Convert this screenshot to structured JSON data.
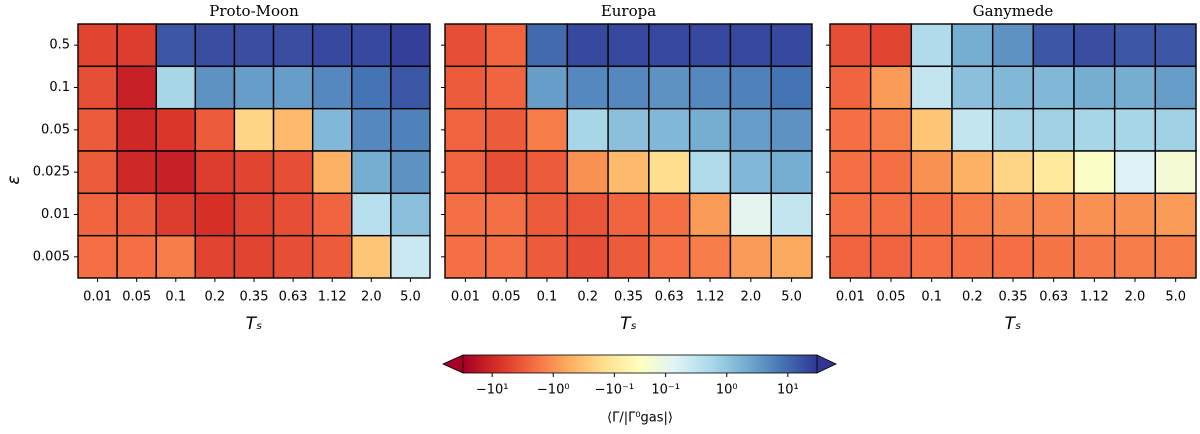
{
  "chart_data": [
    {
      "type": "heatmap",
      "title": "Proto-Moon",
      "xlabel": "Tₛ",
      "ylabel": "ε",
      "x_categories": [
        "0.01",
        "0.05",
        "0.1",
        "0.2",
        "0.35",
        "0.63",
        "1.12",
        "2.0",
        "5.0"
      ],
      "y_categories": [
        "0.5",
        "0.1",
        "0.05",
        "0.025",
        "0.01",
        "0.005"
      ],
      "values": [
        [
          -5,
          -6,
          15,
          18,
          18,
          18,
          20,
          20,
          25
        ],
        [
          -4,
          -12,
          0.6,
          4,
          3,
          3,
          5,
          8,
          15
        ],
        [
          -3,
          -10,
          -7,
          -3,
          -0.2,
          -0.4,
          1.5,
          5,
          6
        ],
        [
          -3,
          -10,
          -12,
          -6,
          -5,
          -4,
          -0.5,
          2,
          4
        ],
        [
          -2.5,
          -3,
          -6,
          -8,
          -5,
          -4,
          -2.5,
          0.4,
          1.2
        ],
        [
          -2,
          -2,
          -1.5,
          -5,
          -5,
          -4,
          -3,
          -0.3,
          0.25
        ]
      ]
    },
    {
      "type": "heatmap",
      "title": "Europa",
      "xlabel": "Tₛ",
      "x_categories": [
        "0.01",
        "0.05",
        "0.1",
        "0.2",
        "0.35",
        "0.63",
        "1.12",
        "2.0",
        "5.0"
      ],
      "y_categories": [
        "0.5",
        "0.1",
        "0.05",
        "0.025",
        "0.01",
        "0.005"
      ],
      "values": [
        [
          -4,
          -2.5,
          10,
          20,
          20,
          20,
          20,
          20,
          20
        ],
        [
          -3,
          -2.5,
          3,
          5,
          5,
          4,
          5,
          6,
          8
        ],
        [
          -2.5,
          -3,
          -1.5,
          0.6,
          1.2,
          1.5,
          2,
          3,
          4
        ],
        [
          -2.5,
          -4,
          -3,
          -1,
          -0.4,
          -0.15,
          0.5,
          1.5,
          2
        ],
        [
          -2,
          -2,
          -3,
          -3.5,
          -2.5,
          -2,
          -0.8,
          0.12,
          0.3
        ],
        [
          -2,
          -2,
          -3,
          -4,
          -3,
          -2,
          -1.5,
          -0.8,
          -0.6
        ]
      ]
    },
    {
      "type": "heatmap",
      "title": "Ganymede",
      "xlabel": "Tₛ",
      "x_categories": [
        "0.01",
        "0.05",
        "0.1",
        "0.2",
        "0.35",
        "0.63",
        "1.12",
        "2.0",
        "5.0"
      ],
      "y_categories": [
        "0.5",
        "0.1",
        "0.05",
        "0.025",
        "0.01",
        "0.005"
      ],
      "values": [
        [
          -4,
          -5,
          0.5,
          2,
          4,
          15,
          18,
          15,
          15
        ],
        [
          -2.5,
          -0.8,
          0.3,
          1.2,
          1.5,
          1.5,
          2,
          2,
          3
        ],
        [
          -2,
          -1.5,
          -0.3,
          0.3,
          0.6,
          0.7,
          0.6,
          0.6,
          0.7
        ],
        [
          -2,
          -2,
          -1,
          -0.5,
          -0.2,
          -0.1,
          0.02,
          0.15,
          0.05
        ],
        [
          -2,
          -2,
          -2,
          -1.5,
          -1.2,
          -1.2,
          -1,
          -1,
          -0.8
        ],
        [
          -2.5,
          -2.5,
          -2,
          -2,
          -2,
          -1.8,
          -1.6,
          -1.5,
          -1.5
        ]
      ]
    }
  ],
  "colorbar": {
    "label": "⟨Γ/|Γ⁰gas|⟩",
    "scale": "symlog",
    "vmin": -30,
    "vmax": 30,
    "linthresh": 0.1,
    "linscale": 0.42,
    "colors": [
      "#a50026",
      "#d73027",
      "#f46d43",
      "#fdae61",
      "#fee090",
      "#ffffbf",
      "#e0f3f8",
      "#abd9e9",
      "#74add1",
      "#4575b4",
      "#313695"
    ],
    "ticks": [
      {
        "value": -10,
        "label": "−10¹"
      },
      {
        "value": -1,
        "label": "−10⁰"
      },
      {
        "value": -0.1,
        "label": "−10⁻¹"
      },
      {
        "value": 0.1,
        "label": "10⁻¹"
      },
      {
        "value": 1,
        "label": "10⁰"
      },
      {
        "value": 10,
        "label": "10¹"
      }
    ]
  }
}
